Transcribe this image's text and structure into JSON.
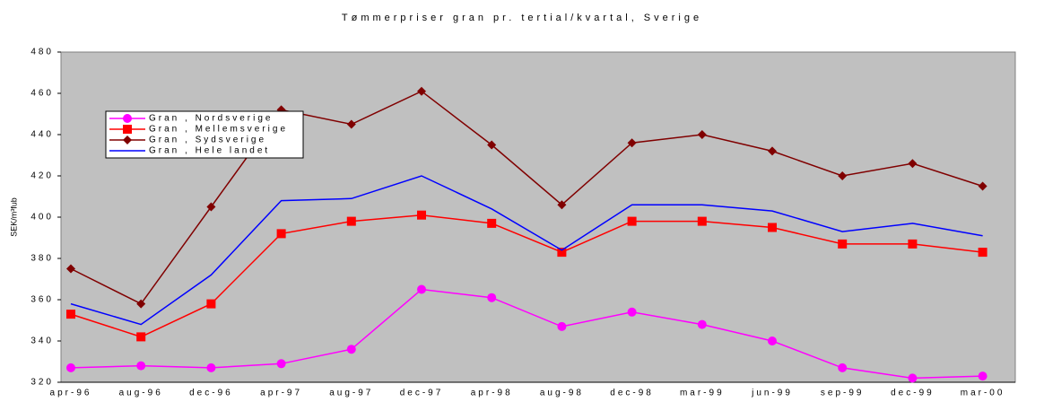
{
  "chart_data": {
    "type": "line",
    "title": "Tømmerpriser gran pr. tertial/kvartal, Sverige",
    "y_label": "SEK/m³fub",
    "categories": [
      "apr-96",
      "aug-96",
      "dec-96",
      "apr-97",
      "aug-97",
      "dec-97",
      "apr-98",
      "aug-98",
      "dec-98",
      "mar-99",
      "jun-99",
      "sep-99",
      "dec-99",
      "mar-00"
    ],
    "series": [
      {
        "name": "Gran , Nordsverige",
        "color": "#ff00ff",
        "marker": "circle",
        "values": [
          327,
          328,
          327,
          329,
          336,
          365,
          361,
          347,
          354,
          348,
          340,
          327,
          322,
          323
        ]
      },
      {
        "name": "Gran , Mellemsverige",
        "color": "#ff0000",
        "marker": "square",
        "values": [
          353,
          342,
          358,
          392,
          398,
          401,
          397,
          383,
          398,
          398,
          395,
          387,
          387,
          383
        ]
      },
      {
        "name": "Gran , Sydsverige",
        "color": "#800000",
        "marker": "diamond",
        "values": [
          375,
          358,
          405,
          452,
          445,
          461,
          435,
          406,
          436,
          440,
          432,
          420,
          426,
          415
        ]
      },
      {
        "name": "Gran , Hele landet",
        "color": "#0000ff",
        "marker": "none",
        "values": [
          358,
          348,
          372,
          408,
          409,
          420,
          404,
          384,
          406,
          406,
          403,
          393,
          397,
          391
        ]
      }
    ],
    "ylim": [
      320,
      480
    ],
    "yticks": [
      320,
      340,
      360,
      380,
      400,
      420,
      440,
      460,
      480
    ],
    "plot_background": "#c0c0c0",
    "legend": "upper left"
  }
}
